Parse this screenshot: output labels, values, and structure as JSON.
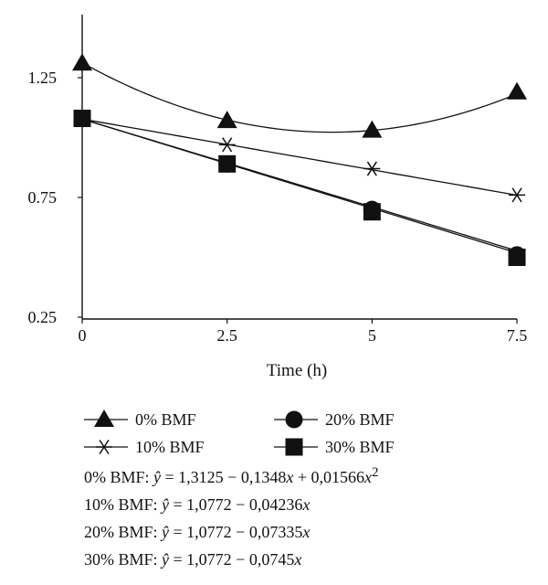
{
  "chart_data": {
    "type": "line",
    "title": "",
    "xlabel": "Time (h)",
    "ylabel": "",
    "xlim": [
      0,
      7.5
    ],
    "ylim": [
      0.25,
      1.5
    ],
    "x_ticks": [
      "0",
      "2.5",
      "5",
      "7.5"
    ],
    "y_ticks": [
      "0.25",
      "0.75",
      "1.25"
    ],
    "x": [
      0,
      2.5,
      5,
      7.5
    ],
    "grid": false,
    "legend_position": "below",
    "series": [
      {
        "name": "0% BMF",
        "marker": "triangle",
        "points": [
          1.31,
          1.07,
          1.03,
          1.19
        ],
        "fit": {
          "type": "quadratic",
          "a": 1.3125,
          "b": -0.1348,
          "c": 0.01566
        }
      },
      {
        "name": "10% BMF",
        "marker": "asterisk",
        "points": [
          1.08,
          0.97,
          0.87,
          0.76
        ],
        "fit": {
          "type": "linear",
          "a": 1.0772,
          "b": -0.04236
        }
      },
      {
        "name": "20% BMF",
        "marker": "circle",
        "points": [
          1.08,
          0.89,
          0.7,
          0.51
        ],
        "fit": {
          "type": "linear",
          "a": 1.0772,
          "b": -0.07335
        }
      },
      {
        "name": "30% BMF",
        "marker": "square",
        "points": [
          1.08,
          0.89,
          0.69,
          0.5
        ],
        "fit": {
          "type": "linear",
          "a": 1.0772,
          "b": -0.0745
        }
      }
    ]
  },
  "legend": {
    "triangle": "0% BMF",
    "circle": "20% BMF",
    "asterisk": "10% BMF",
    "square": "30% BMF"
  },
  "equations": [
    {
      "prefix": "0% BMF: ",
      "rhs": " = 1,3125 − 0,1348",
      "sup": "2",
      "quad": " + 0,01566"
    },
    {
      "prefix": "10% BMF: ",
      "rhs": " = 1,0772 − 0,04236"
    },
    {
      "prefix": "20% BMF: ",
      "rhs": " = 1,0772 − 0,07335"
    },
    {
      "prefix": "30% BMF: ",
      "rhs": " = 1,0772 − 0,0745"
    }
  ],
  "symbols": {
    "yhat": "ŷ",
    "x": "x"
  }
}
